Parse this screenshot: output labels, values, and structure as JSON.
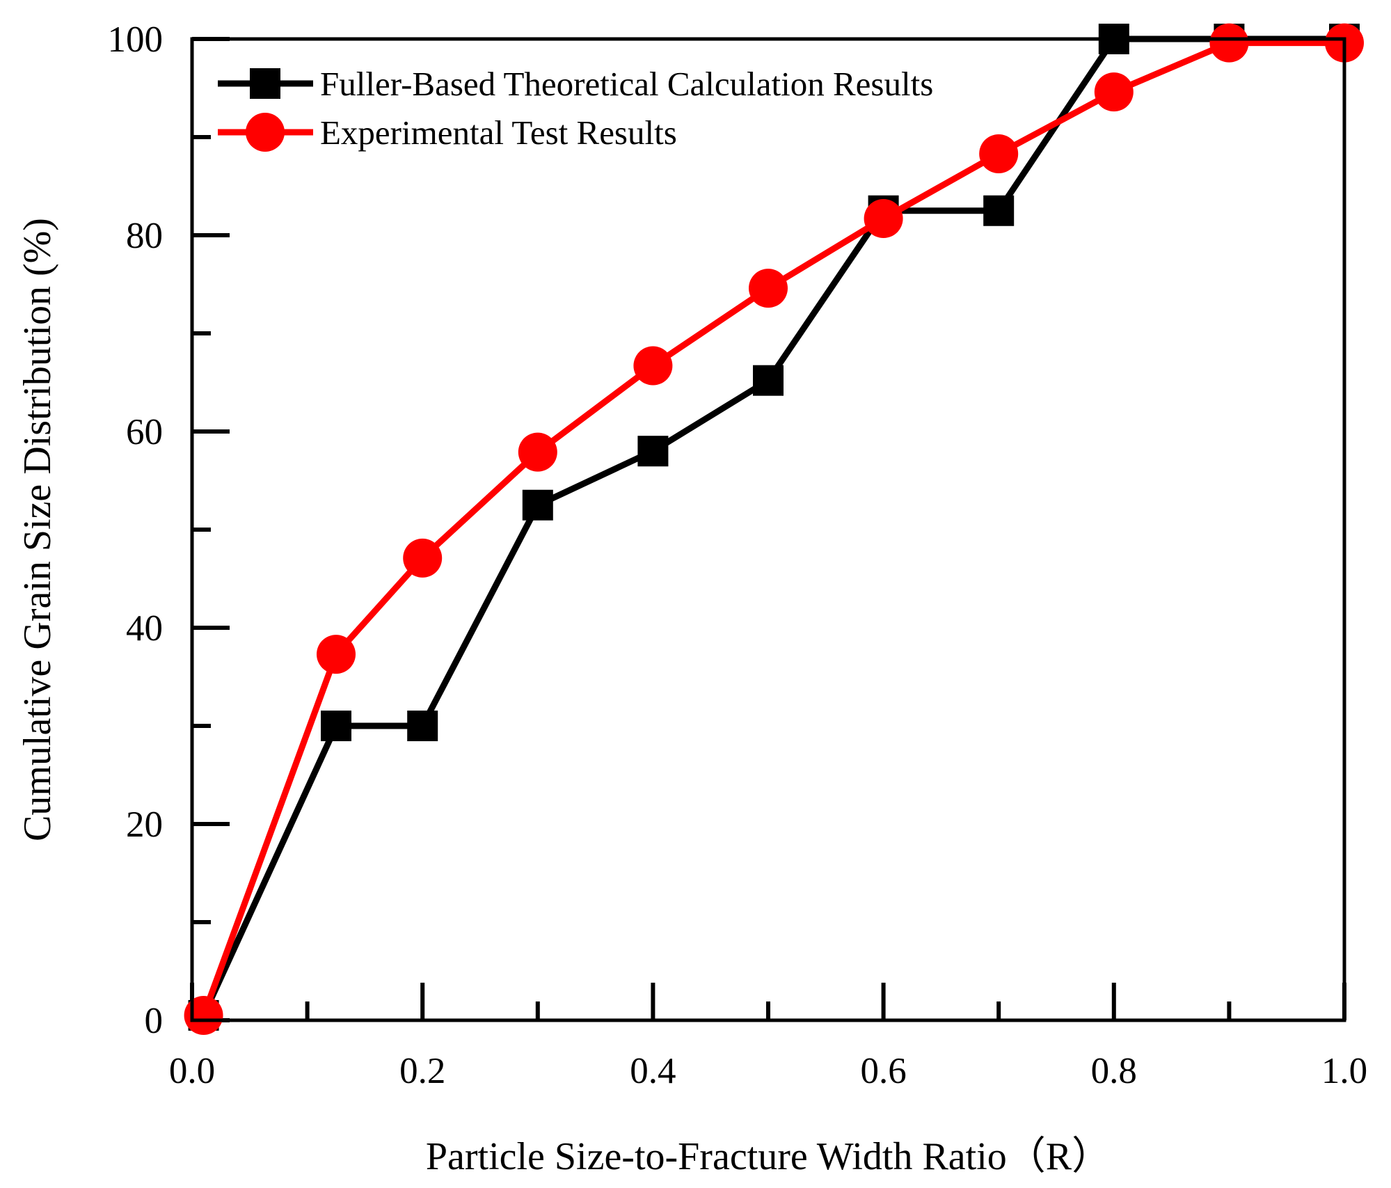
{
  "chart_data": {
    "type": "line",
    "title": "",
    "xlabel": "Particle Size-to-Fracture Width Ratio（R）",
    "ylabel": "Cumulative Grain Size Distribution (%)",
    "xlim": [
      0.0,
      1.0
    ],
    "ylim": [
      0,
      100
    ],
    "x_ticks": [
      0.0,
      0.2,
      0.4,
      0.6,
      0.8,
      1.0
    ],
    "x_tick_labels": [
      "0.0",
      "0.2",
      "0.4",
      "0.6",
      "0.8",
      "1.0"
    ],
    "x_minor_ticks": [
      0.1,
      0.3,
      0.5,
      0.7,
      0.9
    ],
    "y_ticks": [
      0,
      20,
      40,
      60,
      80,
      100
    ],
    "y_tick_labels": [
      "0",
      "20",
      "40",
      "60",
      "80",
      "100"
    ],
    "y_minor_ticks": [
      10,
      30,
      50,
      70,
      90
    ],
    "grid": false,
    "legend_position": "top-left",
    "series": [
      {
        "name": "Fuller-Based Theoretical Calculation Results",
        "color": "#000000",
        "marker": "square",
        "x": [
          0.01,
          0.125,
          0.2,
          0.3,
          0.4,
          0.5,
          0.6,
          0.7,
          0.8,
          0.9,
          1.0
        ],
        "y": [
          0.5,
          30,
          30,
          52.5,
          58,
          65.2,
          82.5,
          82.5,
          100,
          100,
          100
        ]
      },
      {
        "name": "Experimental Test Results",
        "color": "#ff0000",
        "marker": "circle",
        "x": [
          0.01,
          0.125,
          0.2,
          0.3,
          0.4,
          0.5,
          0.6,
          0.7,
          0.8,
          0.9,
          1.0
        ],
        "y": [
          0.5,
          37.3,
          47.1,
          57.9,
          66.7,
          74.6,
          81.7,
          88.3,
          94.6,
          99.6,
          99.6
        ]
      }
    ]
  }
}
